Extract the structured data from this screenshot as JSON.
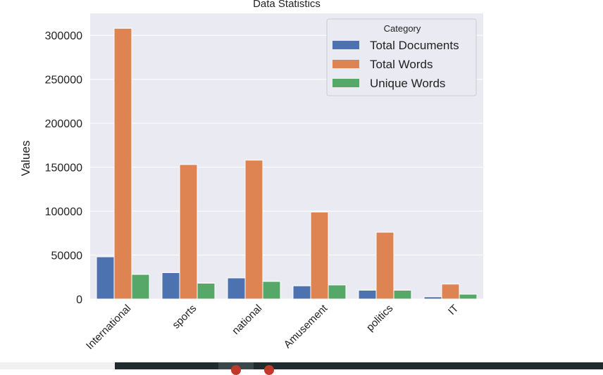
{
  "chart_data": {
    "type": "bar",
    "title": "Data Statistics",
    "xlabel": "",
    "ylabel": "Values",
    "ylim": [
      0,
      325000
    ],
    "yticks": [
      0,
      50000,
      100000,
      150000,
      200000,
      250000,
      300000
    ],
    "categories": [
      "International",
      "sports",
      "national",
      "Amusement",
      "politics",
      "IT"
    ],
    "series": [
      {
        "name": "Total Documents",
        "values": [
          48000,
          30000,
          24000,
          15000,
          10000,
          2500
        ]
      },
      {
        "name": "Total Words",
        "values": [
          308000,
          153000,
          158000,
          99000,
          76000,
          17000
        ]
      },
      {
        "name": "Unique Words",
        "values": [
          28000,
          18000,
          20000,
          16000,
          10000,
          5500
        ]
      }
    ],
    "legend": {
      "title": "Category",
      "position": "top-right"
    },
    "grid": true,
    "colors": {
      "Total Documents": "#4c72b0",
      "Total Words": "#dd8452",
      "Unique Words": "#55a868",
      "plot_background": "#eaeaf2",
      "grid": "#ffffff"
    }
  }
}
